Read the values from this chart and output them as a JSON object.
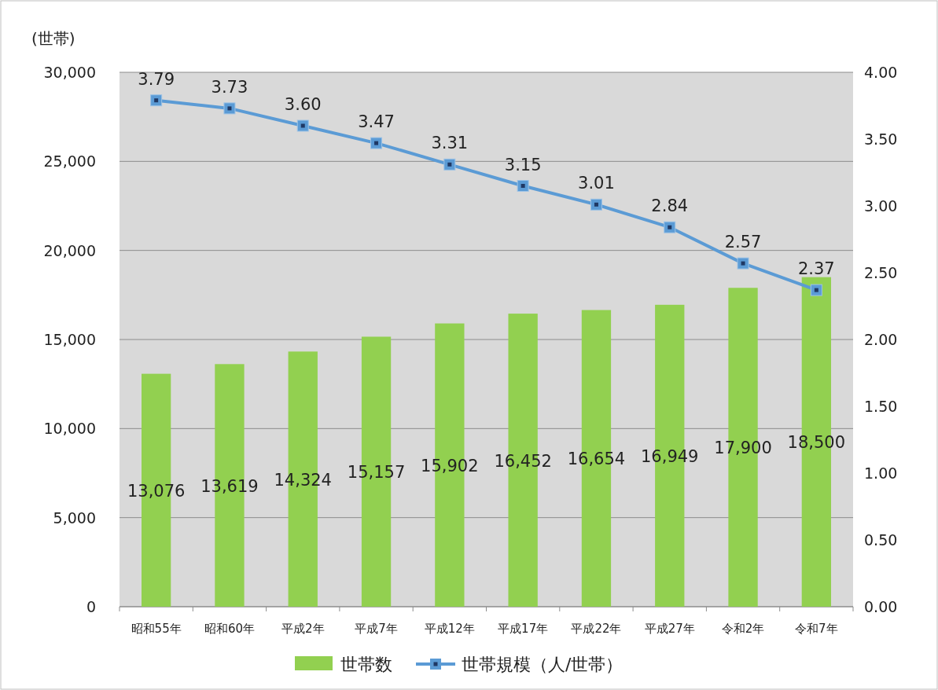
{
  "chart_data": {
    "type": "bar",
    "ylabel": "(世帯)",
    "categories": [
      "昭和55年",
      "昭和60年",
      "平成2年",
      "平成7年",
      "平成12年",
      "平成17年",
      "平成22年",
      "平成27年",
      "令和2年",
      "令和7年"
    ],
    "series": [
      {
        "name": "世帯数",
        "color": "#92d050",
        "values": [
          13076,
          13619,
          14324,
          15157,
          15902,
          16452,
          16654,
          16949,
          17900,
          18500
        ],
        "value_labels": [
          "13,076",
          "13,619",
          "14,324",
          "15,157",
          "15,902",
          "16,452",
          "16,654",
          "16,949",
          "17,900",
          "18,500"
        ]
      },
      {
        "name": "世帯規模（人/世帯）",
        "type": "line",
        "axis": "y2",
        "color": "#5b9bd5",
        "marker": "square",
        "values": [
          3.79,
          3.73,
          3.6,
          3.47,
          3.31,
          3.15,
          3.01,
          2.84,
          2.57,
          2.37
        ],
        "value_labels": [
          "3.79",
          "3.73",
          "3.60",
          "3.47",
          "3.31",
          "3.15",
          "3.01",
          "2.84",
          "2.57",
          "2.37"
        ]
      }
    ],
    "ylim": [
      0,
      30000
    ],
    "yticks": [
      0,
      {
        "value": 5000,
        "label": "5,000"
      },
      {
        "value": 10000,
        "label": "10,000"
      },
      {
        "value": 15000,
        "label": "15,000"
      },
      {
        "value": 20000,
        "label": "20,000"
      },
      {
        "value": 25000,
        "label": "25,000"
      },
      {
        "value": 30000,
        "label": "30,000"
      }
    ],
    "y2lim": [
      0,
      4
    ],
    "y2ticks": [
      {
        "value": 0,
        "label": "0.00"
      },
      {
        "value": 0.5,
        "label": "0.50"
      },
      {
        "value": 1,
        "label": "1.00"
      },
      {
        "value": 1.5,
        "label": "1.50"
      },
      {
        "value": 2,
        "label": "2.00"
      },
      {
        "value": 2.5,
        "label": "2.50"
      },
      {
        "value": 3,
        "label": "3.00"
      },
      {
        "value": 3.5,
        "label": "3.50"
      },
      {
        "value": 4,
        "label": "4.00"
      }
    ],
    "grid": "y",
    "legend": "bottom"
  }
}
